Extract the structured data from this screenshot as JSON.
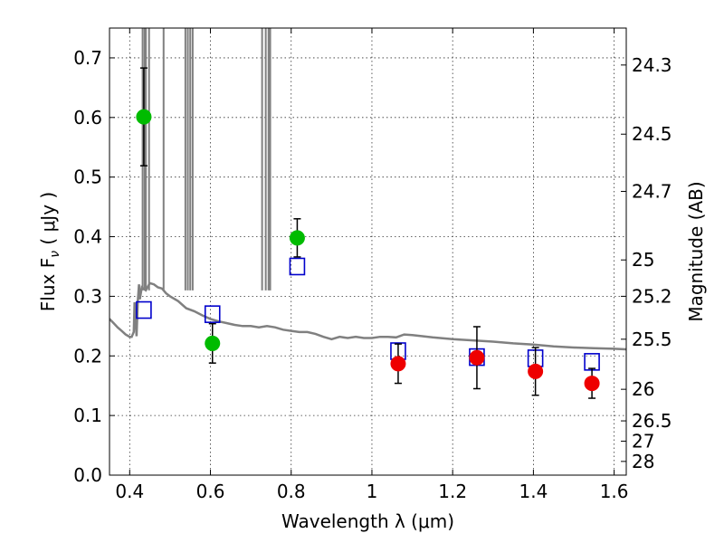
{
  "chart_data": {
    "type": "scatter",
    "title": "",
    "xlabel": "Wavelength  λ (μm)",
    "ylabel": "Flux  F",
    "ylabel_sub": "ν",
    "ylabel_unit": "( μJy )",
    "y2label": "Magnitude (AB)",
    "xlim": [
      0.35,
      1.63
    ],
    "ylim": [
      0.0,
      0.75
    ],
    "grid": true,
    "x_ticks": [
      0.4,
      0.6,
      0.8,
      1.0,
      1.2,
      1.4,
      1.6
    ],
    "x_tick_labels": [
      "0.4",
      "0.6",
      "0.8",
      "1",
      "1.2",
      "1.4",
      "1.6"
    ],
    "y_ticks": [
      0.0,
      0.1,
      0.2,
      0.3,
      0.4,
      0.5,
      0.6,
      0.7
    ],
    "y_tick_labels": [
      "0.0",
      "0.1",
      "0.2",
      "0.3",
      "0.4",
      "0.5",
      "0.6",
      "0.7"
    ],
    "y2_ticks": [
      {
        "label": "24.3",
        "flux": 0.688
      },
      {
        "label": "24.5",
        "flux": 0.572
      },
      {
        "label": "24.7",
        "flux": 0.476
      },
      {
        "label": "25",
        "flux": 0.361
      },
      {
        "label": "25.2",
        "flux": 0.3
      },
      {
        "label": "25.5",
        "flux": 0.228
      },
      {
        "label": "26",
        "flux": 0.144
      },
      {
        "label": "26.5",
        "flux": 0.091
      },
      {
        "label": "27",
        "flux": 0.057
      },
      {
        "label": "28",
        "flux": 0.023
      }
    ],
    "series": [
      {
        "marker": "square",
        "color": "#0000cc",
        "x": [
          0.435,
          0.605,
          0.815,
          1.065,
          1.26,
          1.405,
          1.545
        ],
        "y": [
          0.277,
          0.27,
          0.35,
          0.208,
          0.198,
          0.196,
          0.19
        ]
      },
      {
        "marker": "circle",
        "color": "#00bb00",
        "x": [
          0.435,
          0.605,
          0.815
        ],
        "y": [
          0.601,
          0.221,
          0.398
        ],
        "yerr": [
          0.082,
          0.033,
          0.032
        ]
      },
      {
        "marker": "circle",
        "color": "#ee0000",
        "x": [
          1.065,
          1.26,
          1.405,
          1.545
        ],
        "y": [
          0.187,
          0.197,
          0.174,
          0.154
        ],
        "yerr": [
          0.033,
          0.052,
          0.04,
          0.025
        ]
      },
      {
        "marker": "line",
        "color": "#808080",
        "x": [
          0.35,
          0.36,
          0.37,
          0.38,
          0.39,
          0.4,
          0.405,
          0.41,
          0.412,
          0.415,
          0.417,
          0.42,
          0.423,
          0.425,
          0.43,
          0.44,
          0.45,
          0.46,
          0.47,
          0.48,
          0.49,
          0.5,
          0.52,
          0.54,
          0.56,
          0.58,
          0.6,
          0.62,
          0.64,
          0.66,
          0.68,
          0.7,
          0.72,
          0.74,
          0.76,
          0.78,
          0.8,
          0.82,
          0.84,
          0.86,
          0.88,
          0.9,
          0.92,
          0.94,
          0.96,
          0.98,
          1.0,
          1.02,
          1.04,
          1.06,
          1.08,
          1.1,
          1.15,
          1.2,
          1.25,
          1.3,
          1.35,
          1.4,
          1.45,
          1.5,
          1.55,
          1.6,
          1.63
        ],
        "y": [
          0.262,
          0.255,
          0.248,
          0.242,
          0.236,
          0.232,
          0.232,
          0.24,
          0.29,
          0.255,
          0.233,
          0.29,
          0.32,
          0.295,
          0.315,
          0.31,
          0.322,
          0.32,
          0.315,
          0.313,
          0.305,
          0.3,
          0.292,
          0.28,
          0.275,
          0.268,
          0.262,
          0.258,
          0.255,
          0.252,
          0.25,
          0.25,
          0.248,
          0.25,
          0.248,
          0.244,
          0.242,
          0.24,
          0.24,
          0.237,
          0.232,
          0.228,
          0.232,
          0.23,
          0.232,
          0.23,
          0.23,
          0.232,
          0.232,
          0.231,
          0.236,
          0.235,
          0.231,
          0.228,
          0.226,
          0.224,
          0.221,
          0.219,
          0.216,
          0.214,
          0.213,
          0.212,
          0.211
        ]
      }
    ],
    "spectrum_lines": [
      0.432,
      0.437,
      0.44,
      0.448,
      0.484,
      0.538,
      0.544,
      0.55,
      0.556,
      0.728,
      0.737,
      0.744,
      0.748
    ]
  }
}
